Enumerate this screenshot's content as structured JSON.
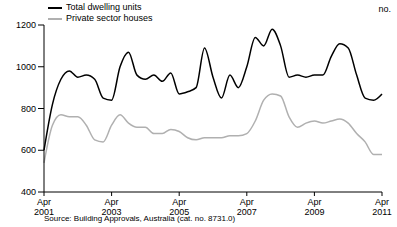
{
  "chart_data": {
    "type": "line",
    "y_label": "no.",
    "source": "Source: Building Approvals, Australia (cat. no. 8731.0)",
    "categories": [
      "Apr 2001",
      null,
      null,
      null,
      null,
      null,
      null,
      null,
      "Apr 2003",
      null,
      null,
      null,
      null,
      null,
      null,
      null,
      "Apr 2005",
      null,
      null,
      null,
      null,
      null,
      null,
      null,
      "Apr 2007",
      null,
      null,
      null,
      null,
      null,
      null,
      null,
      "Apr 2009",
      null,
      null,
      null,
      null,
      null,
      null,
      null,
      "Apr 2011"
    ],
    "series": [
      {
        "name": "Total dwelling units",
        "color": "#000000",
        "values": [
          600,
          820,
          940,
          980,
          950,
          960,
          940,
          850,
          840,
          1000,
          1070,
          960,
          940,
          960,
          930,
          970,
          870,
          880,
          900,
          1090,
          950,
          850,
          960,
          900,
          1000,
          1140,
          1100,
          1180,
          1100,
          950,
          960,
          950,
          960,
          960,
          1050,
          1110,
          1090,
          960,
          850,
          840,
          870
        ]
      },
      {
        "name": "Private sector houses",
        "color": "#b0b0b0",
        "values": [
          540,
          720,
          770,
          760,
          760,
          720,
          650,
          640,
          720,
          770,
          730,
          710,
          710,
          680,
          680,
          700,
          690,
          660,
          650,
          660,
          660,
          660,
          670,
          670,
          680,
          740,
          840,
          870,
          860,
          760,
          710,
          730,
          740,
          730,
          740,
          750,
          730,
          680,
          640,
          580,
          580
        ]
      }
    ],
    "ylim": [
      400,
      1200
    ],
    "yticks": [
      400,
      600,
      800,
      1000,
      1200
    ],
    "legend": "upper left"
  }
}
